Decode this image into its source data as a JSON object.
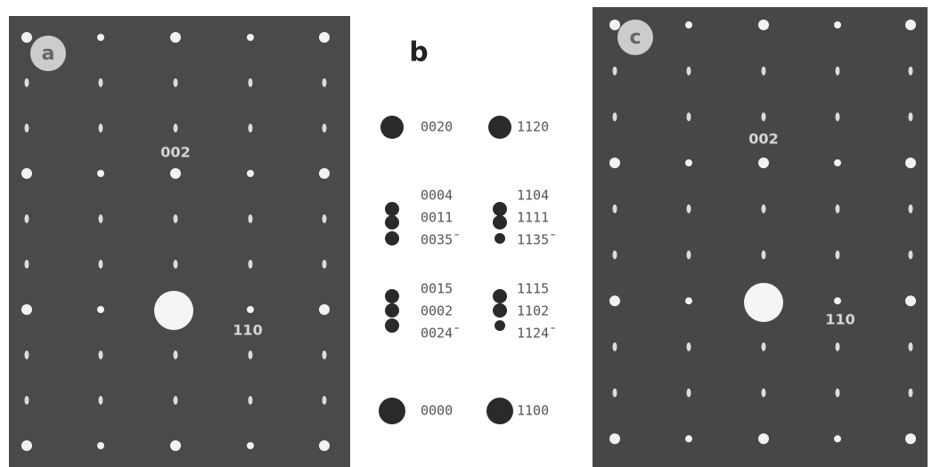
{
  "panels": [
    {
      "label": "a",
      "annotations": [
        "002",
        "110"
      ]
    },
    {
      "label": "b",
      "groups": [
        {
          "left": [
            "0020"
          ],
          "right": [
            "1120"
          ]
        },
        {
          "left": [
            "0004",
            "0011",
            "0035̄"
          ],
          "right": [
            "1104",
            "1111",
            "1135̄"
          ]
        },
        {
          "left": [
            "001̄5",
            "0002",
            "0024̄"
          ],
          "right": [
            "111̄5",
            "1102",
            "1124̄"
          ]
        },
        {
          "left": [
            "0000"
          ],
          "right": [
            "1100"
          ]
        }
      ]
    },
    {
      "label": "c",
      "annotations": [
        "002",
        "110"
      ]
    }
  ]
}
